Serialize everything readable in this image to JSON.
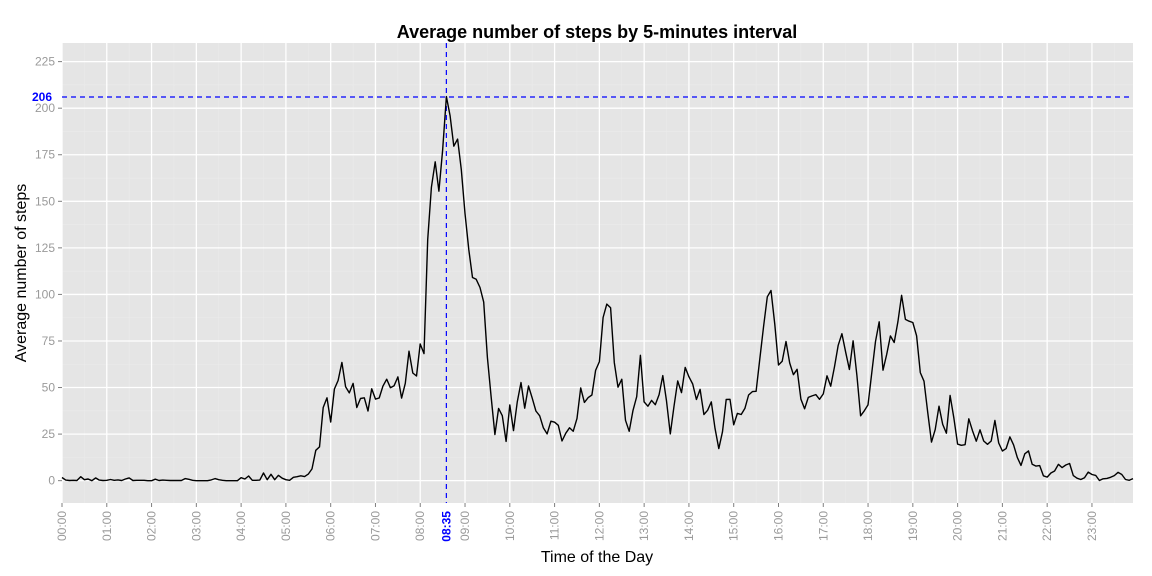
{
  "chart_data": {
    "type": "line",
    "title": "Average number of steps by 5-minutes interval",
    "xlabel": "Time of the Day",
    "ylabel": "Average number of steps",
    "xlim": [
      0,
      1435
    ],
    "ylim": [
      -12,
      235
    ],
    "x_unit": "minutes since 00:00 (5-minute intervals)",
    "y_ticks": [
      0,
      25,
      50,
      75,
      100,
      125,
      150,
      175,
      200,
      225
    ],
    "x_ticks": [
      {
        "x": 0,
        "label": "00:00"
      },
      {
        "x": 60,
        "label": "01:00"
      },
      {
        "x": 120,
        "label": "02:00"
      },
      {
        "x": 180,
        "label": "03:00"
      },
      {
        "x": 240,
        "label": "04:00"
      },
      {
        "x": 300,
        "label": "05:00"
      },
      {
        "x": 360,
        "label": "06:00"
      },
      {
        "x": 420,
        "label": "07:00"
      },
      {
        "x": 480,
        "label": "08:00"
      },
      {
        "x": 540,
        "label": "09:00"
      },
      {
        "x": 600,
        "label": "10:00"
      },
      {
        "x": 660,
        "label": "11:00"
      },
      {
        "x": 720,
        "label": "12:00"
      },
      {
        "x": 780,
        "label": "13:00"
      },
      {
        "x": 840,
        "label": "14:00"
      },
      {
        "x": 900,
        "label": "15:00"
      },
      {
        "x": 960,
        "label": "16:00"
      },
      {
        "x": 1020,
        "label": "17:00"
      },
      {
        "x": 1080,
        "label": "18:00"
      },
      {
        "x": 1140,
        "label": "19:00"
      },
      {
        "x": 1200,
        "label": "20:00"
      },
      {
        "x": 1260,
        "label": "21:00"
      },
      {
        "x": 1320,
        "label": "22:00"
      },
      {
        "x": 1380,
        "label": "23:00"
      }
    ],
    "reference_lines": {
      "vline": {
        "x": 515,
        "label": "08:35"
      },
      "hline": {
        "y": 206,
        "label": "206"
      }
    },
    "grid": true,
    "legend": "none",
    "colors": {
      "panel_bg": "#e5e5e5",
      "grid_major": "#ffffff",
      "grid_minor": "#ebebeb",
      "line": "#000000",
      "reference": "#0000ff",
      "tick_text": "#9a9a9a"
    },
    "series": [
      {
        "x": [
          0,
          5,
          10,
          15,
          20,
          25,
          30,
          35,
          40,
          45,
          50,
          55,
          60,
          65,
          70,
          75,
          80,
          85,
          90,
          95,
          100,
          105,
          110,
          115,
          120,
          125,
          130,
          135,
          140,
          145,
          150,
          155,
          160,
          165,
          170,
          175,
          180,
          185,
          190,
          195,
          200,
          205,
          210,
          215,
          220,
          225,
          230,
          235,
          240,
          245,
          250,
          255,
          260,
          265,
          270,
          275,
          280,
          285,
          290,
          295,
          300,
          305,
          310,
          315,
          320,
          325,
          330,
          335,
          340,
          345,
          350,
          355,
          360,
          365,
          370,
          375,
          380,
          385,
          390,
          395,
          400,
          405,
          410,
          415,
          420,
          425,
          430,
          435,
          440,
          445,
          450,
          455,
          460,
          465,
          470,
          475,
          480,
          485,
          490,
          495,
          500,
          505,
          510,
          515,
          520,
          525,
          530,
          535,
          540,
          545,
          550,
          555,
          560,
          565,
          570,
          575,
          580,
          585,
          590,
          595,
          600,
          605,
          610,
          615,
          620,
          625,
          630,
          635,
          640,
          645,
          650,
          655,
          660,
          665,
          670,
          675,
          680,
          685,
          690,
          695,
          700,
          705,
          710,
          715,
          720,
          725,
          730,
          735,
          740,
          745,
          750,
          755,
          760,
          765,
          770,
          775,
          780,
          785,
          790,
          795,
          800,
          805,
          810,
          815,
          820,
          825,
          830,
          835,
          840,
          845,
          850,
          855,
          860,
          865,
          870,
          875,
          880,
          885,
          890,
          895,
          900,
          905,
          910,
          915,
          920,
          925,
          930,
          935,
          940,
          945,
          950,
          955,
          960,
          965,
          970,
          975,
          980,
          985,
          990,
          995,
          1000,
          1005,
          1010,
          1015,
          1020,
          1025,
          1030,
          1035,
          1040,
          1045,
          1050,
          1055,
          1060,
          1065,
          1070,
          1075,
          1080,
          1085,
          1090,
          1095,
          1100,
          1105,
          1110,
          1115,
          1120,
          1125,
          1130,
          1135,
          1140,
          1145,
          1150,
          1155,
          1160,
          1165,
          1170,
          1175,
          1180,
          1185,
          1190,
          1195,
          1200,
          1205,
          1210,
          1215,
          1220,
          1225,
          1230,
          1235,
          1240,
          1245,
          1250,
          1255,
          1260,
          1265,
          1270,
          1275,
          1280,
          1285,
          1290,
          1295,
          1300,
          1305,
          1310,
          1315,
          1320,
          1325,
          1330,
          1335,
          1340,
          1345,
          1350,
          1355,
          1360,
          1365,
          1370,
          1375,
          1380,
          1385,
          1390,
          1395,
          1400,
          1405,
          1410,
          1415,
          1420,
          1425,
          1430,
          1435
        ],
        "values": [
          1.7,
          0.3,
          0.1,
          0.2,
          0.1,
          2.1,
          0.5,
          0.9,
          0,
          1.5,
          0.3,
          0.1,
          0.2,
          0.6,
          0.2,
          0.4,
          0.1,
          0.9,
          1.5,
          0.1,
          0.2,
          0.2,
          0.2,
          0,
          0,
          0.8,
          0.1,
          0.3,
          0.2,
          0.1,
          0.1,
          0.1,
          0.1,
          1.1,
          0.7,
          0.2,
          0,
          0,
          0,
          0,
          0.4,
          1.1,
          0.5,
          0.2,
          0,
          0,
          0,
          0,
          1.6,
          0.9,
          2.5,
          0.2,
          0.2,
          0.3,
          4.1,
          0.5,
          3.4,
          0.5,
          2.9,
          1.3,
          0.5,
          0.2,
          1.8,
          2.1,
          2.6,
          2.2,
          3.5,
          6.3,
          16.3,
          18.1,
          39.3,
          44.5,
          31.5,
          49.2,
          53.8,
          63.5,
          50.4,
          47.1,
          52.2,
          39.3,
          44.1,
          44.5,
          37.4,
          49.3,
          43.8,
          44.4,
          50.7,
          54.5,
          49.9,
          51.0,
          55.7,
          44.3,
          52.3,
          69.5,
          57.8,
          56.2,
          73.4,
          68.2,
          129.4,
          157.5,
          171.2,
          155.4,
          177.3,
          206.2,
          195.9,
          179.6,
          183.4,
          167.0,
          143.5,
          124.0,
          109.1,
          108.1,
          103.7,
          95.9,
          66.2,
          45.2,
          24.8,
          38.8,
          34.9,
          21.1,
          40.6,
          26.9,
          42.4,
          52.7,
          38.9,
          50.8,
          44.3,
          37.4,
          34.8,
          28.3,
          25.1,
          31.9,
          31.4,
          29.7,
          21.3,
          25.5,
          28.4,
          26.5,
          33.4,
          49.8,
          42.0,
          44.6,
          46.0,
          59.2,
          63.9,
          87.6,
          94.8,
          92.8,
          63.4,
          50.2,
          54.5,
          32.4,
          26.5,
          37.7,
          45.1,
          67.3,
          42.3,
          40.0,
          43.1,
          40.8,
          46.2,
          56.4,
          42.8,
          25.1,
          39.9,
          53.5,
          47.3,
          60.8,
          55.8,
          51.9,
          43.6,
          49.0,
          35.5,
          37.8,
          42.3,
          28.1,
          17.2,
          26.3,
          43.6,
          43.7,
          30.0,
          36.1,
          35.5,
          38.8,
          46.0,
          47.8,
          48.0,
          65.3,
          82.9,
          98.7,
          102.1,
          83.9,
          62.1,
          64.1,
          74.7,
          63.2,
          56.9,
          59.8,
          43.8,
          38.6,
          44.7,
          45.5,
          46.2,
          43.7,
          46.6,
          56.3,
          50.7,
          61.2,
          72.7,
          78.9,
          68.9,
          59.7,
          75.1,
          56.5,
          34.8,
          37.5,
          40.7,
          58.0,
          74.7,
          85.3,
          59.3,
          67.8,
          77.7,
          74.2,
          85.3,
          99.5,
          86.6,
          85.6,
          84.9,
          77.8,
          58.0,
          53.4,
          36.3,
          20.7,
          27.4,
          40.0,
          30.2,
          25.5,
          45.7,
          33.5,
          19.6,
          19.0,
          19.3,
          33.2,
          26.8,
          21.2,
          27.3,
          21.3,
          19.5,
          21.3,
          32.3,
          20.2,
          15.9,
          17.2,
          23.5,
          19.2,
          12.5,
          8.2,
          14.4,
          16.0,
          8.8,
          7.8,
          8.1,
          2.6,
          1.9,
          4.1,
          5.2,
          8.8,
          7.0,
          8.4,
          9.2,
          2.7,
          1.3,
          0.6,
          1.6,
          4.6,
          3.3,
          2.8,
          0.1,
          1.0,
          1.2,
          1.8,
          2.7,
          4.5,
          3.3,
          0.6,
          0.2,
          1.1
        ]
      }
    ]
  }
}
